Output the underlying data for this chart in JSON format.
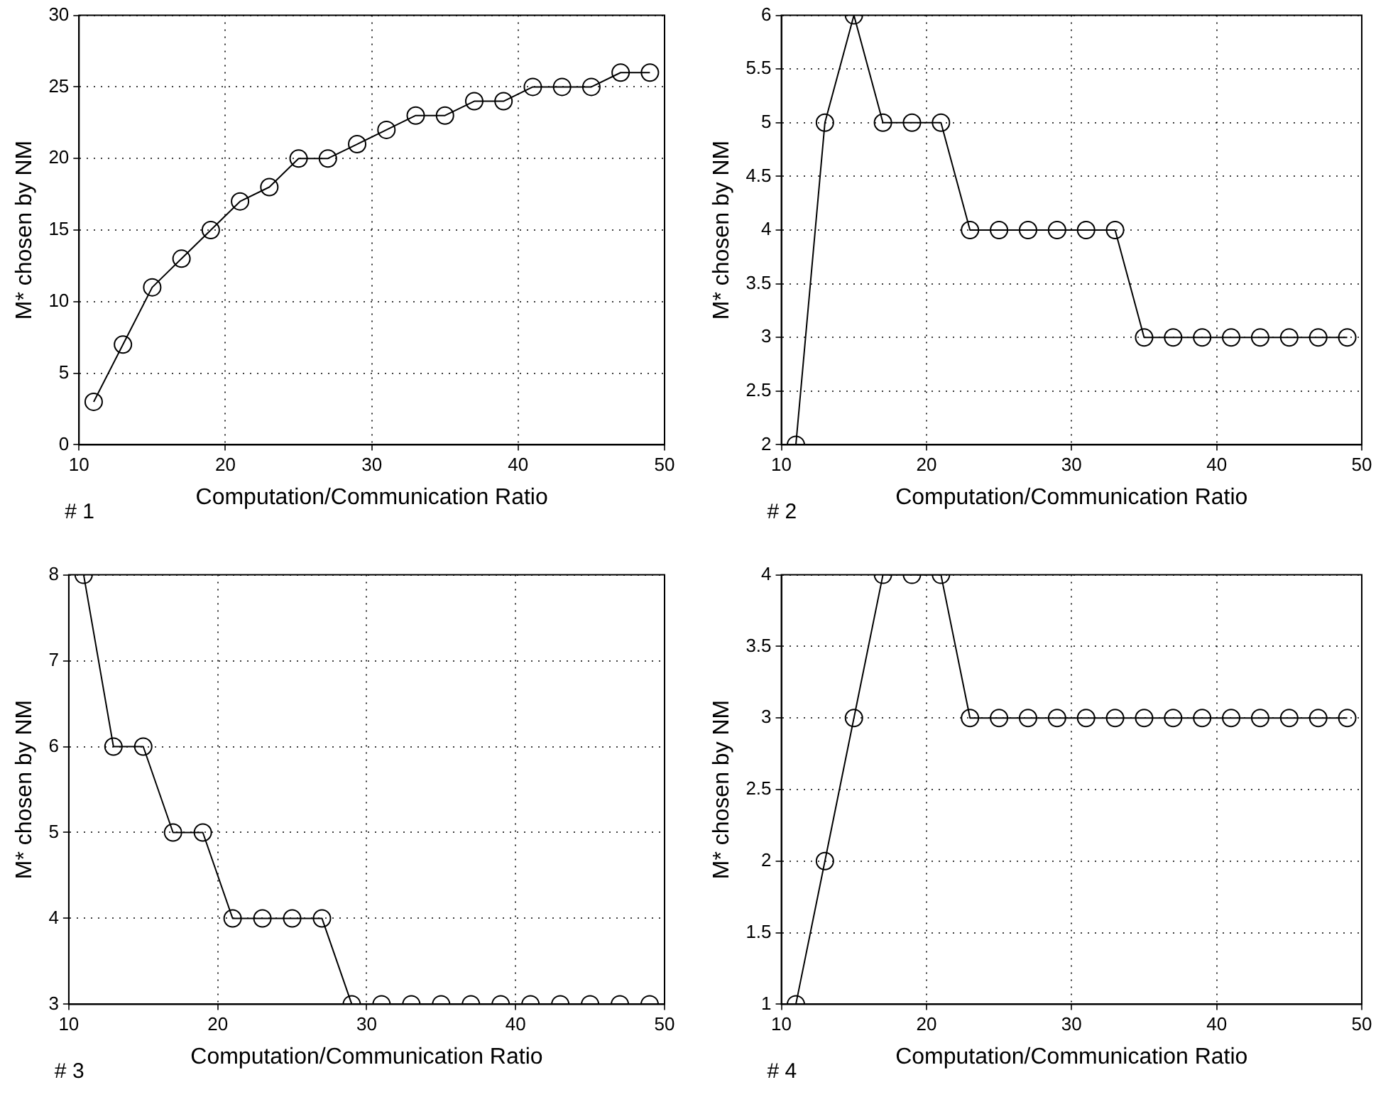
{
  "chart_data": [
    {
      "type": "line",
      "xlabel": "Computation/Communication Ratio",
      "ylabel": "M* chosen by NM",
      "annotations": [
        "# 1"
      ],
      "x": [
        11,
        13,
        15,
        17,
        19,
        21,
        23,
        25,
        27,
        29,
        31,
        33,
        35,
        37,
        39,
        41,
        43,
        45,
        47,
        49
      ],
      "series": [
        {
          "color": "#000000",
          "values": [
            3,
            7,
            11,
            13,
            15,
            17,
            18,
            20,
            20,
            21,
            22,
            23,
            23,
            24,
            24,
            25,
            25,
            25,
            26,
            26
          ]
        }
      ],
      "xlim": [
        10,
        50
      ],
      "xticks": [
        10,
        20,
        30,
        40,
        50
      ],
      "ylim": [
        0,
        30
      ],
      "yticks": [
        0,
        5,
        10,
        15,
        20,
        25,
        30
      ],
      "grid": true,
      "legend": false,
      "marker": "circle",
      "line_style": "solid"
    },
    {
      "type": "line",
      "xlabel": "Computation/Communication Ratio",
      "ylabel": "M* chosen by NM",
      "annotations": [
        "# 2"
      ],
      "x": [
        11,
        13,
        15,
        17,
        19,
        21,
        23,
        25,
        27,
        29,
        31,
        33,
        35,
        37,
        39,
        41,
        43,
        45,
        47,
        49
      ],
      "series": [
        {
          "color": "#000000",
          "values": [
            2,
            5,
            6,
            5,
            5,
            5,
            4,
            4,
            4,
            4,
            4,
            4,
            3,
            3,
            3,
            3,
            3,
            3,
            3,
            3
          ]
        }
      ],
      "xlim": [
        10,
        50
      ],
      "xticks": [
        10,
        20,
        30,
        40,
        50
      ],
      "ylim": [
        2,
        6
      ],
      "yticks": [
        2,
        2.5,
        3,
        3.5,
        4,
        4.5,
        5,
        5.5,
        6
      ],
      "grid": true,
      "legend": false,
      "marker": "circle",
      "line_style": "solid"
    },
    {
      "type": "line",
      "xlabel": "Computation/Communication Ratio",
      "ylabel": "M* chosen by NM",
      "annotations": [
        "# 3"
      ],
      "x": [
        11,
        13,
        15,
        17,
        19,
        21,
        23,
        25,
        27,
        29,
        31,
        33,
        35,
        37,
        39,
        41,
        43,
        45,
        47,
        49
      ],
      "series": [
        {
          "color": "#000000",
          "values": [
            8,
            6,
            6,
            5,
            5,
            4,
            4,
            4,
            4,
            3,
            3,
            3,
            3,
            3,
            3,
            3,
            3,
            3,
            3,
            3
          ]
        }
      ],
      "xlim": [
        10,
        50
      ],
      "xticks": [
        10,
        20,
        30,
        40,
        50
      ],
      "ylim": [
        3,
        8
      ],
      "yticks": [
        3,
        4,
        5,
        6,
        7,
        8
      ],
      "grid": true,
      "legend": false,
      "marker": "circle",
      "line_style": "solid"
    },
    {
      "type": "line",
      "xlabel": "Computation/Communication Ratio",
      "ylabel": "M* chosen by NM",
      "annotations": [
        "# 4"
      ],
      "x": [
        11,
        13,
        15,
        17,
        19,
        21,
        23,
        25,
        27,
        29,
        31,
        33,
        35,
        37,
        39,
        41,
        43,
        45,
        47,
        49
      ],
      "series": [
        {
          "color": "#000000",
          "values": [
            1,
            2,
            3,
            4,
            4,
            4,
            3,
            3,
            3,
            3,
            3,
            3,
            3,
            3,
            3,
            3,
            3,
            3,
            3,
            3
          ]
        }
      ],
      "xlim": [
        10,
        50
      ],
      "xticks": [
        10,
        20,
        30,
        40,
        50
      ],
      "ylim": [
        1,
        4
      ],
      "yticks": [
        1,
        1.5,
        2,
        2.5,
        3,
        3.5,
        4
      ],
      "grid": true,
      "legend": false,
      "marker": "circle",
      "line_style": "solid"
    }
  ]
}
